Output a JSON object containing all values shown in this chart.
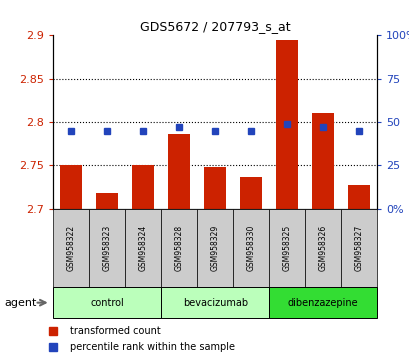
{
  "title": "GDS5672 / 207793_s_at",
  "samples": [
    "GSM958322",
    "GSM958323",
    "GSM958324",
    "GSM958328",
    "GSM958329",
    "GSM958330",
    "GSM958325",
    "GSM958326",
    "GSM958327"
  ],
  "transformed_count": [
    2.75,
    2.718,
    2.75,
    2.786,
    2.748,
    2.737,
    2.895,
    2.81,
    2.727
  ],
  "percentile_rank": [
    45,
    45,
    45,
    47,
    45,
    45,
    49,
    47,
    45
  ],
  "ylim_left": [
    2.7,
    2.9
  ],
  "ylim_right": [
    0,
    100
  ],
  "yticks_left": [
    2.7,
    2.75,
    2.8,
    2.85,
    2.9
  ],
  "yticks_right": [
    0,
    25,
    50,
    75,
    100
  ],
  "bar_color": "#cc2200",
  "dot_color": "#2244bb",
  "bar_width": 0.6,
  "background_plot": "#ffffff",
  "background_label": "#cccccc",
  "background_group_light": "#bbffbb",
  "background_group_dark": "#33dd33",
  "ylabel_left_color": "#cc2200",
  "ylabel_right_color": "#2244bb",
  "group_spans": [
    [
      0,
      2,
      "control"
    ],
    [
      3,
      5,
      "bevacizumab"
    ],
    [
      6,
      8,
      "dibenzazepine"
    ]
  ],
  "group_colors": [
    "#bbffbb",
    "#bbffbb",
    "#33dd33"
  ]
}
